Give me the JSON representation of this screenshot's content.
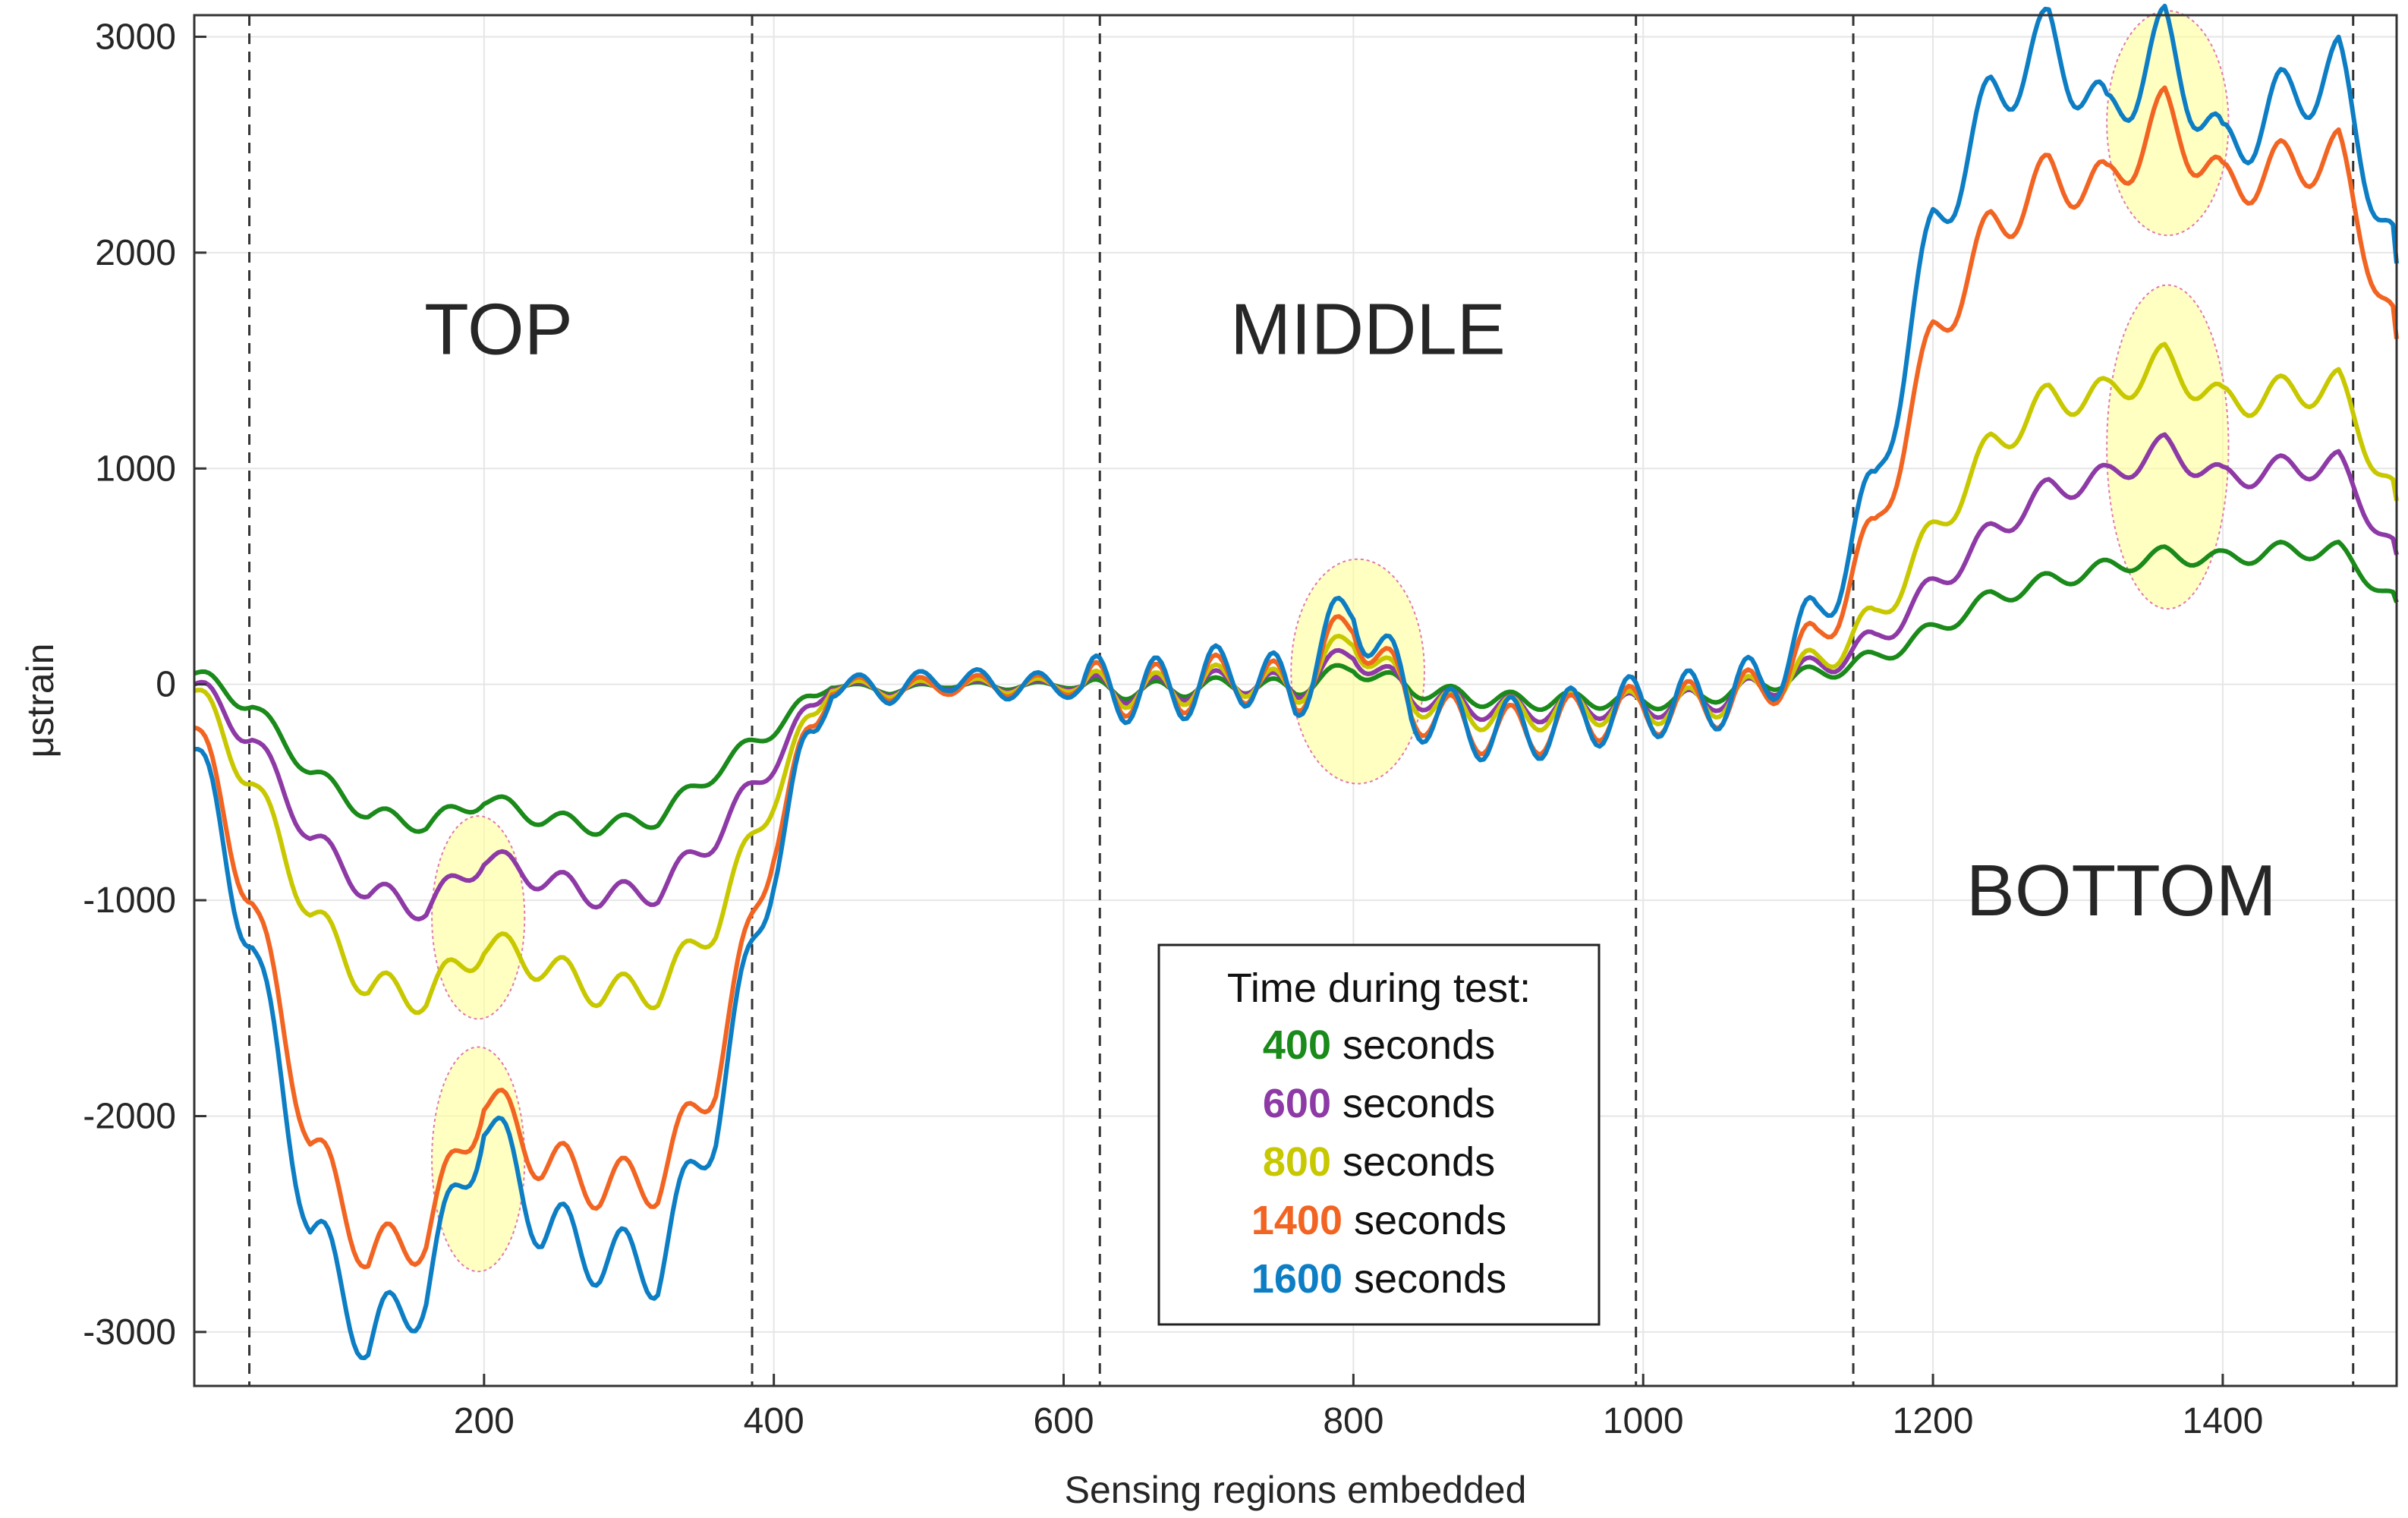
{
  "chart_data": {
    "type": "line",
    "xlabel": "Sensing regions embedded",
    "ylabel": "μstrain",
    "xlim": [
      0,
      1520
    ],
    "ylim": [
      -3250,
      3100
    ],
    "grid": true,
    "xticks": [
      200,
      400,
      600,
      800,
      1000,
      1200,
      1400
    ],
    "yticks": [
      -3000,
      -2000,
      -1000,
      0,
      1000,
      2000,
      3000
    ],
    "xtick_labels": [
      "200",
      "400",
      "600",
      "800",
      "1000",
      "1200",
      "1400"
    ],
    "ytick_labels": [
      "-3000",
      "-2000",
      "-1000",
      "0",
      "1000",
      "2000",
      "3000"
    ],
    "region_boundaries": [
      38,
      385,
      625,
      995,
      1145,
      1490
    ],
    "region_labels": [
      {
        "text": "TOP",
        "x": 210,
        "y": 1650
      },
      {
        "text": "MIDDLE",
        "x": 810,
        "y": 1650
      },
      {
        "text": "BOTTOM",
        "x": 1330,
        "y": -950
      }
    ],
    "highlights": [
      {
        "cx": 196,
        "cy": -1080,
        "rx": 32,
        "ry": 470
      },
      {
        "cx": 196,
        "cy": -2200,
        "rx": 32,
        "ry": 520
      },
      {
        "cx": 803,
        "cy": 60,
        "rx": 46,
        "ry": 520
      },
      {
        "cx": 1362,
        "cy": 2600,
        "rx": 42,
        "ry": 520
      },
      {
        "cx": 1362,
        "cy": 1100,
        "rx": 42,
        "ry": 750
      }
    ],
    "legend": {
      "title": "Time during test:",
      "unit_label": "seconds",
      "placement": "lower-center"
    },
    "series_x": [
      0,
      40,
      80,
      120,
      160,
      200,
      240,
      280,
      320,
      360,
      400,
      440,
      480,
      520,
      560,
      600,
      640,
      680,
      720,
      760,
      800,
      840,
      880,
      920,
      960,
      1000,
      1040,
      1080,
      1120,
      1160,
      1200,
      1240,
      1280,
      1320,
      1360,
      1400,
      1440,
      1480,
      1520
    ],
    "series": [
      {
        "name": "400",
        "label": "400 seconds",
        "color": "#1a8a1a",
        "values": [
          50,
          -100,
          -400,
          -600,
          -650,
          -530,
          -620,
          -660,
          -620,
          -400,
          -200,
          0,
          -30,
          0,
          -10,
          0,
          -30,
          -20,
          0,
          -20,
          80,
          -20,
          -60,
          -80,
          -70,
          -80,
          -60,
          0,
          50,
          120,
          250,
          400,
          480,
          540,
          600,
          580,
          620,
          620,
          380
        ]
      },
      {
        "name": "600",
        "label": "600 seconds",
        "color": "#8e3aa6",
        "values": [
          0,
          -250,
          -700,
          -960,
          -1040,
          -800,
          -900,
          -980,
          -960,
          -700,
          -350,
          0,
          -30,
          0,
          -10,
          0,
          -30,
          -20,
          20,
          -20,
          150,
          -50,
          -100,
          -120,
          -100,
          -100,
          -80,
          -20,
          80,
          200,
          450,
          700,
          900,
          960,
          1100,
          950,
          1000,
          1020,
          600
        ]
      },
      {
        "name": "800",
        "label": "800 seconds",
        "color": "#c8c800",
        "values": [
          -30,
          -450,
          -1050,
          -1400,
          -1450,
          -1200,
          -1300,
          -1420,
          -1420,
          -1100,
          -500,
          0,
          -30,
          0,
          -10,
          0,
          -30,
          -20,
          30,
          -30,
          220,
          -60,
          -130,
          -140,
          -110,
          -110,
          -90,
          -30,
          100,
          300,
          700,
          1100,
          1320,
          1340,
          1500,
          1300,
          1350,
          1380,
          850
        ]
      },
      {
        "name": "1400",
        "label": "1400 seconds",
        "color": "#f26422",
        "values": [
          -200,
          -1000,
          -2100,
          -2650,
          -2550,
          -1900,
          -2200,
          -2320,
          -2300,
          -1800,
          -700,
          0,
          -30,
          0,
          -10,
          0,
          -30,
          -20,
          40,
          -40,
          300,
          -100,
          -200,
          -220,
          -150,
          -120,
          -100,
          -40,
          200,
          700,
          1600,
          2100,
          2350,
          2300,
          2650,
          2300,
          2400,
          2450,
          1600
        ]
      },
      {
        "name": "1600",
        "label": "1600 seconds",
        "color": "#0d7ec4",
        "values": [
          -300,
          -1200,
          -2500,
          -3050,
          -2800,
          -2000,
          -2500,
          -2650,
          -2700,
          -2000,
          -800,
          0,
          -30,
          30,
          -10,
          0,
          -30,
          -20,
          60,
          -40,
          380,
          -100,
          -200,
          -210,
          -150,
          -100,
          -80,
          -10,
          300,
          900,
          2100,
          2700,
          3000,
          2600,
          3000,
          2450,
          2700,
          2850,
          1950
        ]
      }
    ]
  }
}
